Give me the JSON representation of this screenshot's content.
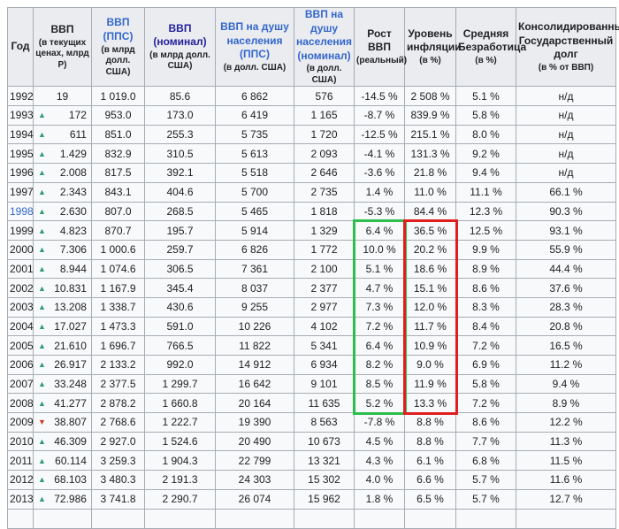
{
  "colors": {
    "link": "#3366cc",
    "visited": "#24209e",
    "arrow_up": "#2f9a73",
    "arrow_down": "#cc3b33",
    "highlight_green": "#2bbf4d",
    "highlight_red": "#df1f1f",
    "header_bg": "#eaecf0",
    "cell_bg": "#f8f9fa",
    "border": "#a7adb4",
    "text": "#202122"
  },
  "highlights": {
    "start_year": "1999",
    "end_year": "2008",
    "growth_box_color": "#2bbf4d",
    "inflation_box_color": "#df1f1f"
  },
  "chart_data": {
    "type": "table",
    "na_text": "н/д",
    "columns": [
      {
        "id": "year",
        "title": "Год",
        "style": "plain",
        "subtitle": ""
      },
      {
        "id": "gdp-current",
        "title": "ВВП",
        "style": "plain",
        "subtitle": "(в текущих ценах, млрд Р)"
      },
      {
        "id": "gdp-ppp",
        "title": "ВВП (ППС)",
        "style": "link",
        "subtitle": "(в млрд долл. США)"
      },
      {
        "id": "gdp-nominal",
        "title": "ВВП (номинал)",
        "style": "visited",
        "subtitle": "(в млрд долл. США)"
      },
      {
        "id": "percap-ppp",
        "title": "ВВП на душу населения (ППС)",
        "style": "link",
        "subtitle": "(в долл. США)"
      },
      {
        "id": "percap-nominal",
        "title": "ВВП на душу населения (номинал)",
        "style": "link",
        "subtitle": "(в долл. США)"
      },
      {
        "id": "growth",
        "title": "Рост ВВП",
        "style": "plain",
        "subtitle": "(реальный)"
      },
      {
        "id": "inflation",
        "title": "Уровень инфляции",
        "style": "plain",
        "subtitle": "(в %)"
      },
      {
        "id": "unemployment",
        "title": "Средняя Безработица",
        "style": "plain",
        "subtitle": "(в %)"
      },
      {
        "id": "debt",
        "title": "Консолидированный Государственный долг",
        "style": "plain",
        "subtitle": "(в % от ВВП)"
      }
    ],
    "rows": [
      {
        "year": "1992",
        "year_link": false,
        "arrow": "",
        "gdp": "19",
        "ppp": "1 019.0",
        "nominal": "85.6",
        "percap_ppp": "6 862",
        "percap_nominal": "576",
        "growth": "-14.5 %",
        "inflation": "2 508 %",
        "unemployment": "5.1 %",
        "debt": "н/д"
      },
      {
        "year": "1993",
        "year_link": false,
        "arrow": "up",
        "gdp": "172",
        "ppp": "953.0",
        "nominal": "173.0",
        "percap_ppp": "6 419",
        "percap_nominal": "1 165",
        "growth": "-8.7 %",
        "inflation": "839.9 %",
        "unemployment": "5.8 %",
        "debt": "н/д"
      },
      {
        "year": "1994",
        "year_link": false,
        "arrow": "up",
        "gdp": "611",
        "ppp": "851.0",
        "nominal": "255.3",
        "percap_ppp": "5 735",
        "percap_nominal": "1 720",
        "growth": "-12.5 %",
        "inflation": "215.1 %",
        "unemployment": "8.0 %",
        "debt": "н/д"
      },
      {
        "year": "1995",
        "year_link": false,
        "arrow": "up",
        "gdp": "1.429",
        "ppp": "832.9",
        "nominal": "310.5",
        "percap_ppp": "5 613",
        "percap_nominal": "2 093",
        "growth": "-4.1 %",
        "inflation": "131.3 %",
        "unemployment": "9.2 %",
        "debt": "н/д"
      },
      {
        "year": "1996",
        "year_link": false,
        "arrow": "up",
        "gdp": "2.008",
        "ppp": "817.5",
        "nominal": "392.1",
        "percap_ppp": "5 518",
        "percap_nominal": "2 646",
        "growth": "-3.6 %",
        "inflation": "21.8 %",
        "unemployment": "9.4 %",
        "debt": "н/д"
      },
      {
        "year": "1997",
        "year_link": false,
        "arrow": "up",
        "gdp": "2.343",
        "ppp": "843.1",
        "nominal": "404.6",
        "percap_ppp": "5 700",
        "percap_nominal": "2 735",
        "growth": "1.4 %",
        "inflation": "11.0 %",
        "unemployment": "11.1 %",
        "debt": "66.1 %"
      },
      {
        "year": "1998",
        "year_link": true,
        "arrow": "up",
        "gdp": "2.630",
        "ppp": "807.0",
        "nominal": "268.5",
        "percap_ppp": "5 465",
        "percap_nominal": "1 818",
        "growth": "-5.3 %",
        "inflation": "84.4 %",
        "unemployment": "12.3 %",
        "debt": "90.3 %"
      },
      {
        "year": "1999",
        "year_link": false,
        "arrow": "up",
        "gdp": "4.823",
        "ppp": "870.7",
        "nominal": "195.7",
        "percap_ppp": "5 914",
        "percap_nominal": "1 329",
        "growth": "6.4 %",
        "inflation": "36.5 %",
        "unemployment": "12.5 %",
        "debt": "93.1 %"
      },
      {
        "year": "2000",
        "year_link": false,
        "arrow": "up",
        "gdp": "7.306",
        "ppp": "1 000.6",
        "nominal": "259.7",
        "percap_ppp": "6 826",
        "percap_nominal": "1 772",
        "growth": "10.0 %",
        "inflation": "20.2 %",
        "unemployment": "9.9 %",
        "debt": "55.9 %"
      },
      {
        "year": "2001",
        "year_link": false,
        "arrow": "up",
        "gdp": "8.944",
        "ppp": "1 074.6",
        "nominal": "306.5",
        "percap_ppp": "7 361",
        "percap_nominal": "2 100",
        "growth": "5.1 %",
        "inflation": "18.6 %",
        "unemployment": "8.9 %",
        "debt": "44.4 %"
      },
      {
        "year": "2002",
        "year_link": false,
        "arrow": "up",
        "gdp": "10.831",
        "ppp": "1 167.9",
        "nominal": "345.4",
        "percap_ppp": "8 037",
        "percap_nominal": "2 377",
        "growth": "4.7 %",
        "inflation": "15.1 %",
        "unemployment": "8.6 %",
        "debt": "37.6 %"
      },
      {
        "year": "2003",
        "year_link": false,
        "arrow": "up",
        "gdp": "13.208",
        "ppp": "1 338.7",
        "nominal": "430.6",
        "percap_ppp": "9 255",
        "percap_nominal": "2 977",
        "growth": "7.3 %",
        "inflation": "12.0 %",
        "unemployment": "8.3 %",
        "debt": "28.3 %"
      },
      {
        "year": "2004",
        "year_link": false,
        "arrow": "up",
        "gdp": "17.027",
        "ppp": "1 473.3",
        "nominal": "591.0",
        "percap_ppp": "10 226",
        "percap_nominal": "4 102",
        "growth": "7.2 %",
        "inflation": "11.7 %",
        "unemployment": "8.4 %",
        "debt": "20.8 %"
      },
      {
        "year": "2005",
        "year_link": false,
        "arrow": "up",
        "gdp": "21.610",
        "ppp": "1 696.7",
        "nominal": "766.5",
        "percap_ppp": "11 822",
        "percap_nominal": "5 341",
        "growth": "6.4 %",
        "inflation": "10.9 %",
        "unemployment": "7.2 %",
        "debt": "16.5 %"
      },
      {
        "year": "2006",
        "year_link": false,
        "arrow": "up",
        "gdp": "26.917",
        "ppp": "2 133.2",
        "nominal": "992.0",
        "percap_ppp": "14 912",
        "percap_nominal": "6 934",
        "growth": "8.2 %",
        "inflation": "9.0 %",
        "unemployment": "6.9 %",
        "debt": "11.2 %"
      },
      {
        "year": "2007",
        "year_link": false,
        "arrow": "up",
        "gdp": "33.248",
        "ppp": "2 377.5",
        "nominal": "1 299.7",
        "percap_ppp": "16 642",
        "percap_nominal": "9 101",
        "growth": "8.5 %",
        "inflation": "11.9 %",
        "unemployment": "5.8 %",
        "debt": "9.4 %"
      },
      {
        "year": "2008",
        "year_link": false,
        "arrow": "up",
        "gdp": "41.277",
        "ppp": "2 878.2",
        "nominal": "1 660.8",
        "percap_ppp": "20 164",
        "percap_nominal": "11 635",
        "growth": "5.2 %",
        "inflation": "13.3 %",
        "unemployment": "7.2 %",
        "debt": "8.9 %"
      },
      {
        "year": "2009",
        "year_link": false,
        "arrow": "down",
        "gdp": "38.807",
        "ppp": "2 768.6",
        "nominal": "1 222.7",
        "percap_ppp": "19 390",
        "percap_nominal": "8 563",
        "growth": "-7.8 %",
        "inflation": "8.8 %",
        "unemployment": "8.6 %",
        "debt": "12.2 %"
      },
      {
        "year": "2010",
        "year_link": false,
        "arrow": "up",
        "gdp": "46.309",
        "ppp": "2 927.0",
        "nominal": "1 524.6",
        "percap_ppp": "20 490",
        "percap_nominal": "10 673",
        "growth": "4.5 %",
        "inflation": "8.8 %",
        "unemployment": "7.7 %",
        "debt": "11.3 %"
      },
      {
        "year": "2011",
        "year_link": false,
        "arrow": "up",
        "gdp": "60.114",
        "ppp": "3 259.3",
        "nominal": "1 904.3",
        "percap_ppp": "22 799",
        "percap_nominal": "13 321",
        "growth": "4.3 %",
        "inflation": "6.1 %",
        "unemployment": "6.8 %",
        "debt": "11.5 %"
      },
      {
        "year": "2012",
        "year_link": false,
        "arrow": "up",
        "gdp": "68.103",
        "ppp": "3 480.3",
        "nominal": "2 191.3",
        "percap_ppp": "24 303",
        "percap_nominal": "15 302",
        "growth": "4.0 %",
        "inflation": "6.6 %",
        "unemployment": "5.7 %",
        "debt": "11.6 %"
      },
      {
        "year": "2013",
        "year_link": false,
        "arrow": "up",
        "gdp": "72.986",
        "ppp": "3 741.8",
        "nominal": "2 290.7",
        "percap_ppp": "26 074",
        "percap_nominal": "15 962",
        "growth": "1.8 %",
        "inflation": "6.5 %",
        "unemployment": "5.7 %",
        "debt": "12.7 %"
      }
    ]
  }
}
